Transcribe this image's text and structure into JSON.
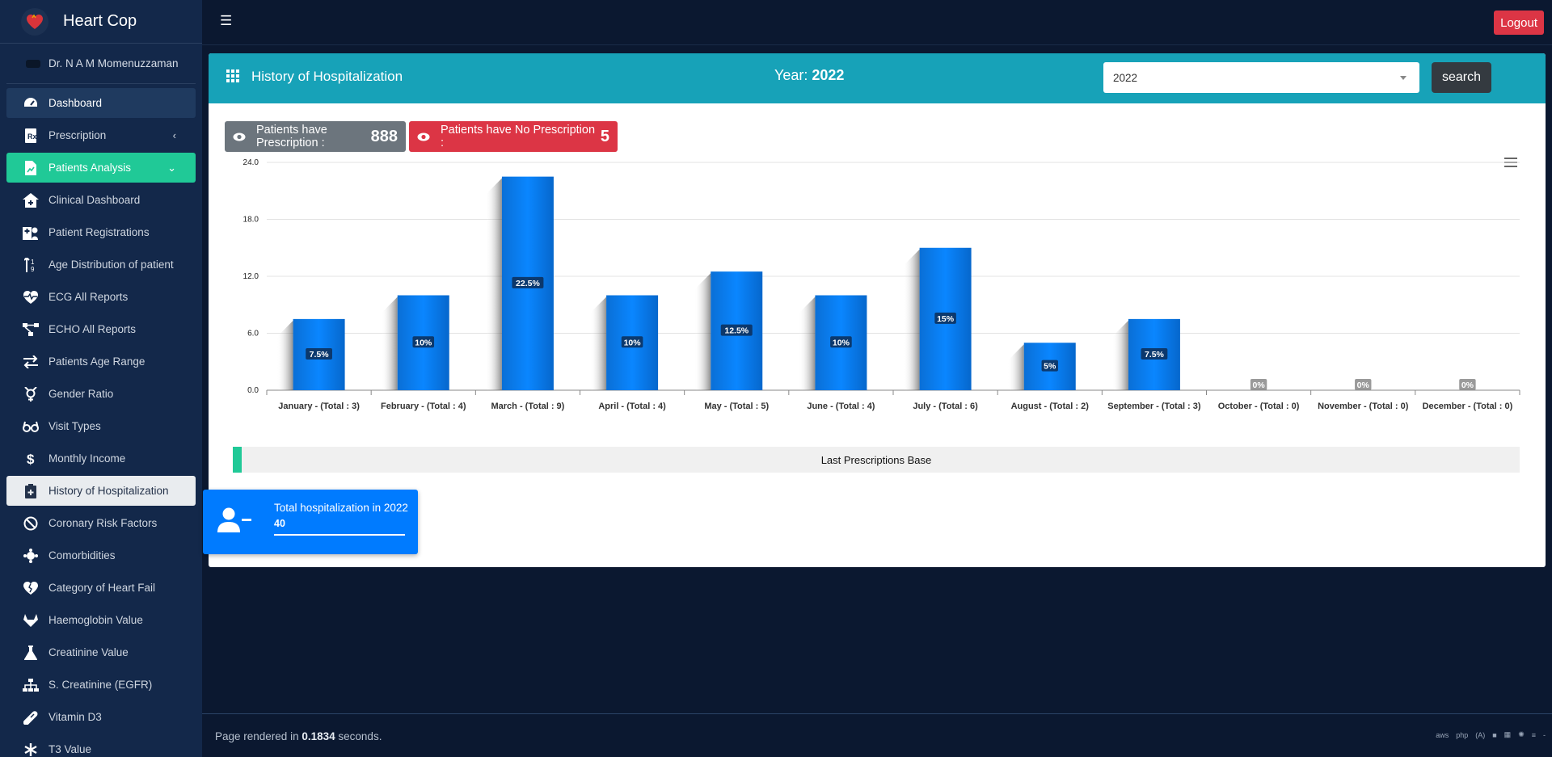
{
  "app": {
    "title": "Heart Cop",
    "user": "Dr. N A M Momenuzzaman"
  },
  "sidebar": {
    "items": [
      {
        "label": "Dashboard",
        "icon": "gauge-icon",
        "state": "dash"
      },
      {
        "label": "Prescription",
        "icon": "prescription-icon",
        "chevron": "‹"
      },
      {
        "label": "Patients Analysis",
        "icon": "file-chart-icon",
        "state": "green",
        "chevron": "⌄"
      },
      {
        "label": "Clinical Dashboard",
        "icon": "clinic-house-icon"
      },
      {
        "label": "Patient Registrations",
        "icon": "hospital-user-icon"
      },
      {
        "label": "Age Distribution of patient",
        "icon": "sort-numeric-icon"
      },
      {
        "label": "ECG All Reports",
        "icon": "heartbeat-icon"
      },
      {
        "label": "ECHO All Reports",
        "icon": "project-diagram-icon"
      },
      {
        "label": "Patients Age Range",
        "icon": "exchange-icon"
      },
      {
        "label": "Gender Ratio",
        "icon": "transgender-icon"
      },
      {
        "label": "Visit Types",
        "icon": "glasses-icon"
      },
      {
        "label": "Monthly Income",
        "icon": "dollar-icon"
      },
      {
        "label": "History of Hospitalization",
        "icon": "clipboard-medical-icon",
        "state": "white"
      },
      {
        "label": "Coronary Risk Factors",
        "icon": "ban-smoking-icon"
      },
      {
        "label": "Comorbidities",
        "icon": "viruses-icon"
      },
      {
        "label": "Category of Heart Fail",
        "icon": "heart-broken-icon"
      },
      {
        "label": "Haemoglobin Value",
        "icon": "gitlab-icon"
      },
      {
        "label": "Creatinine Value",
        "icon": "flask-icon"
      },
      {
        "label": "S. Creatinine (EGFR)",
        "icon": "sitemap-icon"
      },
      {
        "label": "Vitamin D3",
        "icon": "pills-icon"
      },
      {
        "label": "T3 Value",
        "icon": "asterisk-icon"
      }
    ]
  },
  "topbar": {
    "menu_icon": "hamburger-icon",
    "logout_label": "Logout"
  },
  "card": {
    "title": "History of Hospitalization",
    "year_label": "Year:",
    "year_value": "2022",
    "select_value": "2022",
    "search_label": "search"
  },
  "badges": {
    "with_label": "Patients have Prescription :",
    "with_value": "888",
    "without_label": "Patients have No Prescription :",
    "without_value": "5"
  },
  "chart_data": {
    "type": "bar",
    "categories": [
      "January - (Total : 3)",
      "February - (Total : 4)",
      "March - (Total : 9)",
      "April - (Total : 4)",
      "May - (Total : 5)",
      "June - (Total : 4)",
      "July - (Total : 6)",
      "August - (Total : 2)",
      "September - (Total : 3)",
      "October - (Total : 0)",
      "November - (Total : 0)",
      "December - (Total : 0)"
    ],
    "values": [
      7.5,
      10,
      22.5,
      10,
      12.5,
      10,
      15,
      5,
      7.5,
      0,
      0,
      0
    ],
    "data_labels": [
      "7.5%",
      "10%",
      "22.5%",
      "10%",
      "12.5%",
      "10%",
      "15%",
      "5%",
      "7.5%",
      "0%",
      "0%",
      "0%"
    ],
    "yticks": [
      "0.0",
      "6.0",
      "12.0",
      "18.0",
      "24.0"
    ],
    "ylim": [
      0,
      24
    ],
    "color": "#007bff",
    "grid": true,
    "footer_label": "Last Prescriptions Base"
  },
  "total": {
    "label": "Total hospitalization in 2022",
    "value": "40"
  },
  "footer": {
    "render_prefix": "Page rendered in",
    "render_time": "0.1834",
    "render_suffix": "seconds.",
    "icons": [
      "aws-icon",
      "php-icon",
      "a-icon",
      "b-icon",
      "image-icon",
      "react-icon",
      "database-icon",
      "dash-icon"
    ]
  }
}
